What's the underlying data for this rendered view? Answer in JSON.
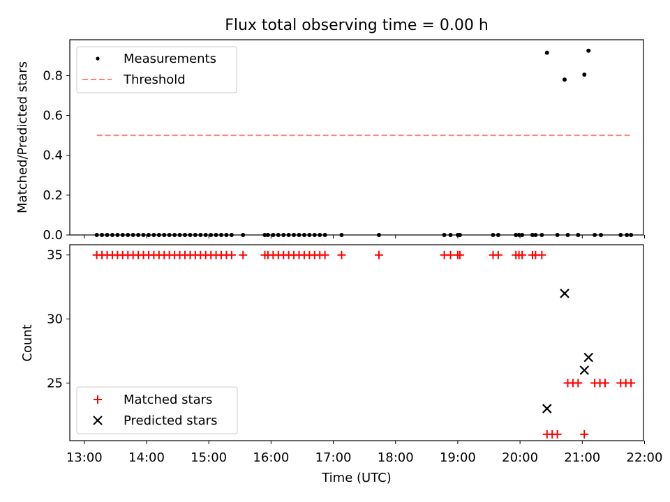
{
  "figure_title": "Flux total observing time = 0.00 h",
  "colors": {
    "measurements": "#000000",
    "threshold": "#ff7f7f",
    "matched": "#ff0000",
    "predicted": "#000000",
    "axes": "#000000",
    "background": "#ffffff"
  },
  "chart_data": [
    {
      "type": "scatter",
      "title": "Flux total observing time = 0.00 h",
      "xlabel": "",
      "ylabel": "Matched/Predicted stars",
      "xlim": [
        "12:46",
        "21:59"
      ],
      "ylim": [
        0,
        0.98
      ],
      "x_ticks": [
        "13:00",
        "14:00",
        "15:00",
        "16:00",
        "17:00",
        "18:00",
        "19:00",
        "20:00",
        "21:00",
        "22:00"
      ],
      "y_ticks": [
        "0.0",
        "0.2",
        "0.4",
        "0.6",
        "0.8"
      ],
      "grid": false,
      "legend_position": "upper left",
      "series": [
        {
          "name": "Measurements",
          "marker": "dot",
          "points": [
            {
              "x": "13:12",
              "y": 0
            },
            {
              "x": "13:17",
              "y": 0
            },
            {
              "x": "13:22",
              "y": 0
            },
            {
              "x": "13:27",
              "y": 0
            },
            {
              "x": "13:32",
              "y": 0
            },
            {
              "x": "13:37",
              "y": 0
            },
            {
              "x": "13:42",
              "y": 0
            },
            {
              "x": "13:47",
              "y": 0
            },
            {
              "x": "13:52",
              "y": 0
            },
            {
              "x": "13:57",
              "y": 0
            },
            {
              "x": "14:02",
              "y": 0
            },
            {
              "x": "14:07",
              "y": 0
            },
            {
              "x": "14:12",
              "y": 0
            },
            {
              "x": "14:17",
              "y": 0
            },
            {
              "x": "14:22",
              "y": 0
            },
            {
              "x": "14:27",
              "y": 0
            },
            {
              "x": "14:32",
              "y": 0
            },
            {
              "x": "14:37",
              "y": 0
            },
            {
              "x": "14:42",
              "y": 0
            },
            {
              "x": "14:47",
              "y": 0
            },
            {
              "x": "14:52",
              "y": 0
            },
            {
              "x": "14:57",
              "y": 0
            },
            {
              "x": "15:02",
              "y": 0
            },
            {
              "x": "15:07",
              "y": 0
            },
            {
              "x": "15:12",
              "y": 0
            },
            {
              "x": "15:17",
              "y": 0
            },
            {
              "x": "15:22",
              "y": 0
            },
            {
              "x": "15:33",
              "y": 0
            },
            {
              "x": "15:54",
              "y": 0
            },
            {
              "x": "15:57",
              "y": 0
            },
            {
              "x": "16:02",
              "y": 0
            },
            {
              "x": "16:07",
              "y": 0
            },
            {
              "x": "16:12",
              "y": 0
            },
            {
              "x": "16:17",
              "y": 0
            },
            {
              "x": "16:22",
              "y": 0
            },
            {
              "x": "16:27",
              "y": 0
            },
            {
              "x": "16:32",
              "y": 0
            },
            {
              "x": "16:37",
              "y": 0
            },
            {
              "x": "16:42",
              "y": 0
            },
            {
              "x": "16:47",
              "y": 0
            },
            {
              "x": "16:52",
              "y": 0
            },
            {
              "x": "17:08",
              "y": 0
            },
            {
              "x": "17:44",
              "y": 0
            },
            {
              "x": "18:47",
              "y": 0
            },
            {
              "x": "18:53",
              "y": 0
            },
            {
              "x": "19:00",
              "y": 0
            },
            {
              "x": "19:02",
              "y": 0
            },
            {
              "x": "19:34",
              "y": 0
            },
            {
              "x": "19:39",
              "y": 0
            },
            {
              "x": "19:56",
              "y": 0
            },
            {
              "x": "19:59",
              "y": 0
            },
            {
              "x": "20:02",
              "y": 0
            },
            {
              "x": "20:12",
              "y": 0
            },
            {
              "x": "20:15",
              "y": 0
            },
            {
              "x": "20:21",
              "y": 0
            },
            {
              "x": "20:26",
              "y": 0.915
            },
            {
              "x": "20:36",
              "y": 0
            },
            {
              "x": "20:43",
              "y": 0.78
            },
            {
              "x": "20:46",
              "y": 0
            },
            {
              "x": "20:56",
              "y": 0
            },
            {
              "x": "21:02",
              "y": 0.805
            },
            {
              "x": "21:06",
              "y": 0.925
            },
            {
              "x": "21:12",
              "y": 0
            },
            {
              "x": "21:18",
              "y": 0
            },
            {
              "x": "21:37",
              "y": 0
            },
            {
              "x": "21:43",
              "y": 0
            },
            {
              "x": "21:47",
              "y": 0
            }
          ]
        },
        {
          "name": "Threshold",
          "style": "dashed line",
          "x": [
            "13:12",
            "21:47"
          ],
          "y": [
            0.5,
            0.5
          ]
        }
      ]
    },
    {
      "type": "scatter",
      "title": "",
      "xlabel": "Time (UTC)",
      "ylabel": "Count",
      "xlim": [
        "12:46",
        "21:59"
      ],
      "ylim": [
        20.5,
        35.8
      ],
      "x_ticks": [
        "13:00",
        "14:00",
        "15:00",
        "16:00",
        "17:00",
        "18:00",
        "19:00",
        "20:00",
        "21:00",
        "22:00"
      ],
      "y_ticks": [
        "25",
        "30",
        "35"
      ],
      "grid": false,
      "legend_position": "lower left",
      "series": [
        {
          "name": "Matched stars",
          "marker": "plus",
          "points": [
            {
              "x": "13:12",
              "y": 35
            },
            {
              "x": "13:17",
              "y": 35
            },
            {
              "x": "13:22",
              "y": 35
            },
            {
              "x": "13:27",
              "y": 35
            },
            {
              "x": "13:32",
              "y": 35
            },
            {
              "x": "13:37",
              "y": 35
            },
            {
              "x": "13:42",
              "y": 35
            },
            {
              "x": "13:47",
              "y": 35
            },
            {
              "x": "13:52",
              "y": 35
            },
            {
              "x": "13:57",
              "y": 35
            },
            {
              "x": "14:02",
              "y": 35
            },
            {
              "x": "14:07",
              "y": 35
            },
            {
              "x": "14:12",
              "y": 35
            },
            {
              "x": "14:17",
              "y": 35
            },
            {
              "x": "14:22",
              "y": 35
            },
            {
              "x": "14:27",
              "y": 35
            },
            {
              "x": "14:32",
              "y": 35
            },
            {
              "x": "14:37",
              "y": 35
            },
            {
              "x": "14:42",
              "y": 35
            },
            {
              "x": "14:47",
              "y": 35
            },
            {
              "x": "14:52",
              "y": 35
            },
            {
              "x": "14:57",
              "y": 35
            },
            {
              "x": "15:02",
              "y": 35
            },
            {
              "x": "15:07",
              "y": 35
            },
            {
              "x": "15:12",
              "y": 35
            },
            {
              "x": "15:17",
              "y": 35
            },
            {
              "x": "15:22",
              "y": 35
            },
            {
              "x": "15:33",
              "y": 35
            },
            {
              "x": "15:54",
              "y": 35
            },
            {
              "x": "15:57",
              "y": 35
            },
            {
              "x": "16:02",
              "y": 35
            },
            {
              "x": "16:07",
              "y": 35
            },
            {
              "x": "16:12",
              "y": 35
            },
            {
              "x": "16:17",
              "y": 35
            },
            {
              "x": "16:22",
              "y": 35
            },
            {
              "x": "16:27",
              "y": 35
            },
            {
              "x": "16:32",
              "y": 35
            },
            {
              "x": "16:37",
              "y": 35
            },
            {
              "x": "16:42",
              "y": 35
            },
            {
              "x": "16:47",
              "y": 35
            },
            {
              "x": "16:52",
              "y": 35
            },
            {
              "x": "17:08",
              "y": 35
            },
            {
              "x": "17:44",
              "y": 35
            },
            {
              "x": "18:47",
              "y": 35
            },
            {
              "x": "18:53",
              "y": 35
            },
            {
              "x": "19:00",
              "y": 35
            },
            {
              "x": "19:02",
              "y": 35
            },
            {
              "x": "19:34",
              "y": 35
            },
            {
              "x": "19:39",
              "y": 35
            },
            {
              "x": "19:56",
              "y": 35
            },
            {
              "x": "19:59",
              "y": 35
            },
            {
              "x": "20:02",
              "y": 35
            },
            {
              "x": "20:12",
              "y": 35
            },
            {
              "x": "20:15",
              "y": 35
            },
            {
              "x": "20:21",
              "y": 35
            },
            {
              "x": "20:26",
              "y": 21
            },
            {
              "x": "20:31",
              "y": 21
            },
            {
              "x": "20:36",
              "y": 21
            },
            {
              "x": "20:46",
              "y": 25
            },
            {
              "x": "20:51",
              "y": 25
            },
            {
              "x": "20:56",
              "y": 25
            },
            {
              "x": "21:02",
              "y": 21
            },
            {
              "x": "21:12",
              "y": 25
            },
            {
              "x": "21:17",
              "y": 25
            },
            {
              "x": "21:22",
              "y": 25
            },
            {
              "x": "21:37",
              "y": 25
            },
            {
              "x": "21:42",
              "y": 25
            },
            {
              "x": "21:47",
              "y": 25
            }
          ]
        },
        {
          "name": "Predicted stars",
          "marker": "x",
          "points": [
            {
              "x": "20:26",
              "y": 23
            },
            {
              "x": "20:43",
              "y": 32
            },
            {
              "x": "21:02",
              "y": 26
            },
            {
              "x": "21:06",
              "y": 27
            }
          ]
        }
      ]
    }
  ]
}
